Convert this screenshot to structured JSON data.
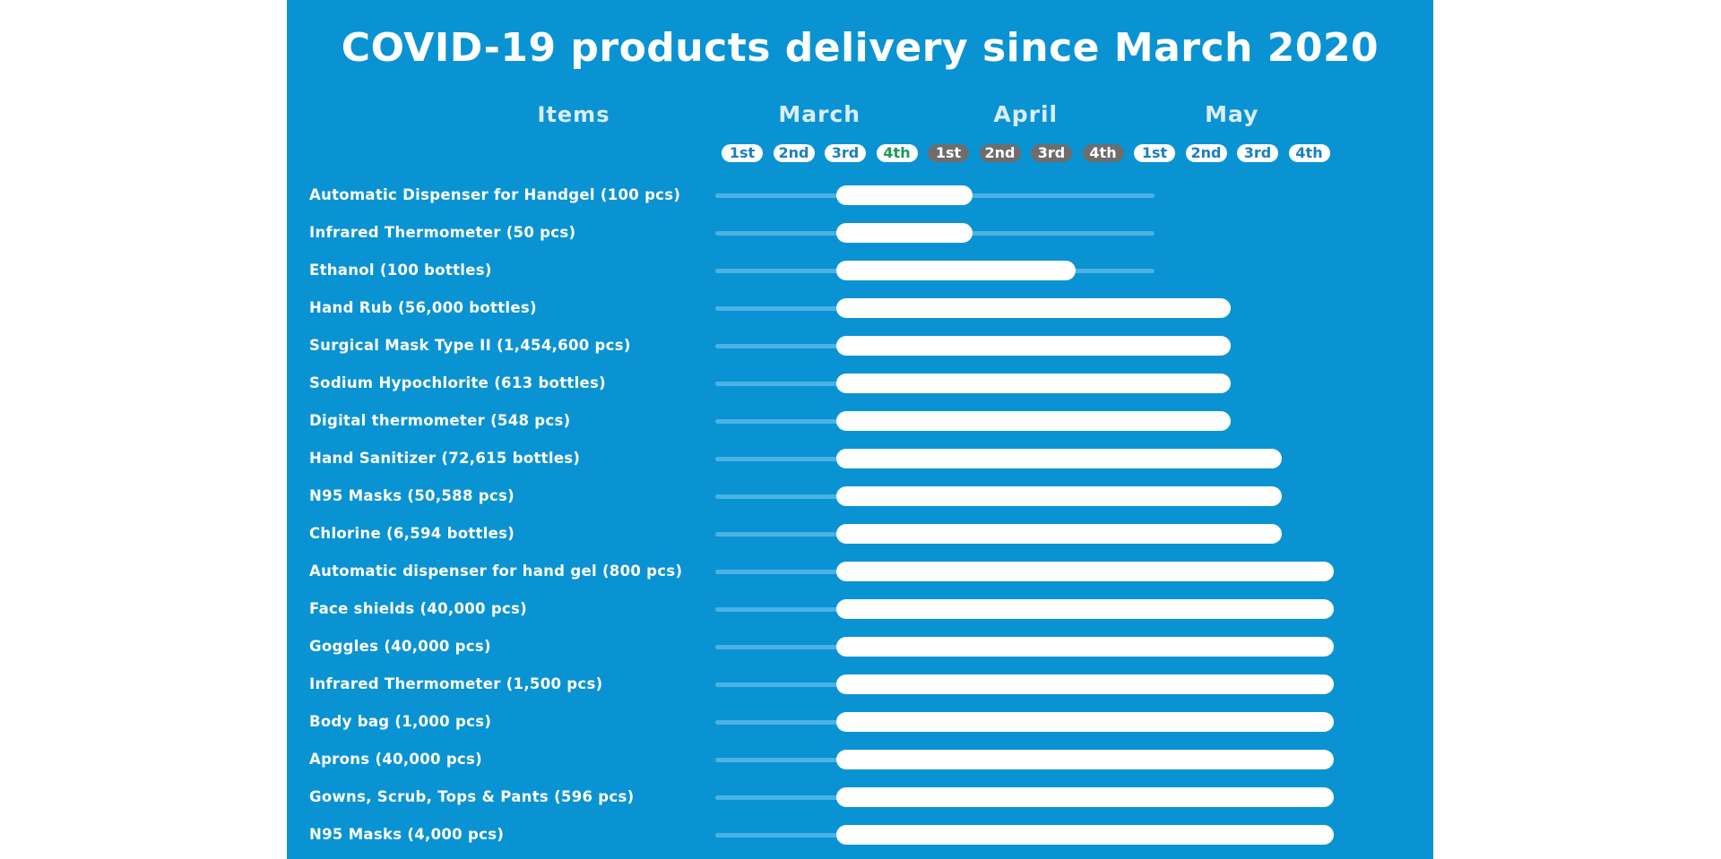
{
  "chart_data": {
    "type": "gantt",
    "title": "COVID-19 products delivery since March 2020",
    "items_header": "Items",
    "months": [
      "March",
      "April",
      "May"
    ],
    "weeks": [
      {
        "label": "1st",
        "month": "March"
      },
      {
        "label": "2nd",
        "month": "March"
      },
      {
        "label": "3rd",
        "month": "March"
      },
      {
        "label": "4th",
        "month": "March"
      },
      {
        "label": "1st",
        "month": "April"
      },
      {
        "label": "2nd",
        "month": "April"
      },
      {
        "label": "3rd",
        "month": "April"
      },
      {
        "label": "4th",
        "month": "April"
      },
      {
        "label": "1st",
        "month": "May"
      },
      {
        "label": "2nd",
        "month": "May"
      },
      {
        "label": "3rd",
        "month": "May"
      },
      {
        "label": "4th",
        "month": "May"
      }
    ],
    "rows": [
      {
        "label": "Automatic Dispenser for Handgel (100 pcs)",
        "start": 3,
        "end": 5
      },
      {
        "label": "Infrared Thermometer (50 pcs)",
        "start": 3,
        "end": 5
      },
      {
        "label": "Ethanol (100 bottles)",
        "start": 3,
        "end": 7
      },
      {
        "label": "Hand Rub (56,000 bottles)",
        "start": 3,
        "end": 10
      },
      {
        "label": "Surgical Mask Type II (1,454,600 pcs)",
        "start": 3,
        "end": 10
      },
      {
        "label": "Sodium Hypochlorite (613 bottles)",
        "start": 3,
        "end": 10
      },
      {
        "label": "Digital thermometer (548 pcs)",
        "start": 3,
        "end": 10
      },
      {
        "label": "Hand Sanitizer (72,615 bottles)",
        "start": 3,
        "end": 11
      },
      {
        "label": "N95 Masks (50,588 pcs)",
        "start": 3,
        "end": 11
      },
      {
        "label": "Chlorine (6,594 bottles)",
        "start": 3,
        "end": 11
      },
      {
        "label": "Automatic dispenser for hand gel (800 pcs)",
        "start": 3,
        "end": 12
      },
      {
        "label": "Face shields (40,000 pcs)",
        "start": 3,
        "end": 12
      },
      {
        "label": "Goggles (40,000 pcs)",
        "start": 3,
        "end": 12
      },
      {
        "label": "Infrared Thermometer (1,500 pcs)",
        "start": 3,
        "end": 12
      },
      {
        "label": "Body bag (1,000 pcs)",
        "start": 3,
        "end": 12
      },
      {
        "label": "Aprons (40,000 pcs)",
        "start": 3,
        "end": 12
      },
      {
        "label": "Gowns, Scrub, Tops & Pants (596 pcs)",
        "start": 3,
        "end": 12
      },
      {
        "label": "N95 Masks (4,000 pcs)",
        "start": 3,
        "end": 12
      }
    ]
  },
  "colors": {
    "background": "#0a93d3",
    "bar": "#ffffff",
    "track": "#4ab3e4",
    "march_pill_text": "#1a7fc0",
    "march_4th_pill_text": "#1b9a5a",
    "april_pill": "#6d6d6d",
    "may_pill_text": "#1a7fc0"
  }
}
